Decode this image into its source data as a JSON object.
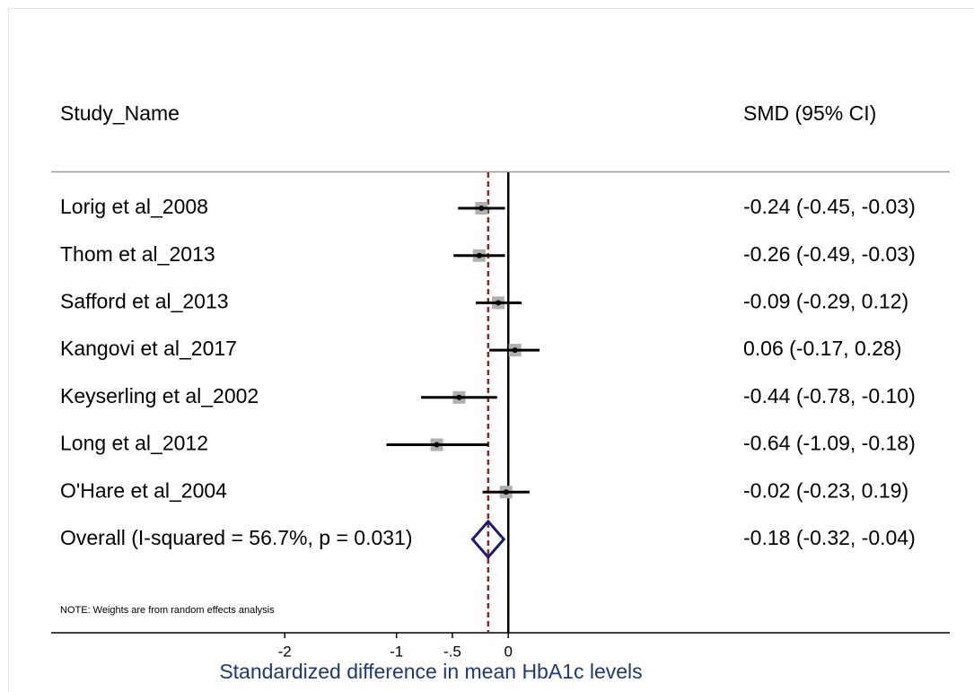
{
  "chart_data": {
    "type": "forest",
    "header_study": "Study_Name",
    "header_effect": "SMD (95% CI)",
    "studies": [
      {
        "name": "Lorig et al_2008",
        "smd": -0.24,
        "lo": -0.45,
        "hi": -0.03,
        "label": "-0.24 (-0.45, -0.03)"
      },
      {
        "name": "Thom et al_2013",
        "smd": -0.26,
        "lo": -0.49,
        "hi": -0.03,
        "label": "-0.26 (-0.49, -0.03)"
      },
      {
        "name": "Safford et al_2013",
        "smd": -0.09,
        "lo": -0.29,
        "hi": 0.12,
        "label": "-0.09 (-0.29, 0.12)"
      },
      {
        "name": "Kangovi et al_2017",
        "smd": 0.06,
        "lo": -0.17,
        "hi": 0.28,
        "label": "0.06 (-0.17, 0.28)"
      },
      {
        "name": "Keyserling et al_2002",
        "smd": -0.44,
        "lo": -0.78,
        "hi": -0.1,
        "label": "-0.44 (-0.78, -0.10)"
      },
      {
        "name": "Long et al_2012",
        "smd": -0.64,
        "lo": -1.09,
        "hi": -0.18,
        "label": "-0.64 (-1.09, -0.18)"
      },
      {
        "name": "O'Hare et al_2004",
        "smd": -0.02,
        "lo": -0.23,
        "hi": 0.19,
        "label": "-0.02 (-0.23, 0.19)"
      }
    ],
    "overall": {
      "name": "Overall  (I-squared = 56.7%, p = 0.031)",
      "smd": -0.18,
      "lo": -0.32,
      "hi": -0.04,
      "label": "-0.18 (-0.32, -0.04)"
    },
    "note": "NOTE: Weights are from random effects analysis",
    "x_label": "Standardized difference in mean HbA1c levels",
    "xlim": [
      -4.09,
      3.95
    ],
    "xticks": [
      -2,
      -1,
      {
        "value": -0.5,
        "label": "-.5"
      },
      0
    ],
    "square_color": "#b0b0b0",
    "ci_color": "#000000",
    "diamond_color": "#1a1a6e",
    "overall_line_color": "#8b2a2a",
    "axis_label_color": "#1f3a6e"
  }
}
